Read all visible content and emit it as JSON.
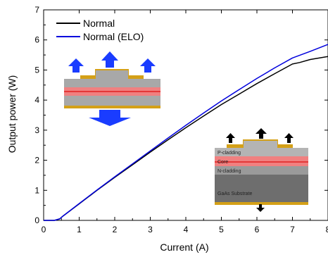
{
  "chart_data": {
    "type": "line",
    "xlabel": "Current  (A)",
    "ylabel": "Output power (W)",
    "xlim": [
      0,
      8
    ],
    "ylim": [
      0,
      7
    ],
    "x_ticks": [
      "0",
      "1",
      "2",
      "3",
      "4",
      "5",
      "6",
      "7",
      "8"
    ],
    "y_ticks": [
      "0",
      "1",
      "2",
      "3",
      "4",
      "5",
      "6",
      "7"
    ],
    "grid": false,
    "legend_position": "top-left",
    "series": [
      {
        "name": "Normal",
        "color": "#000000",
        "x": [
          0,
          0.3,
          0.45,
          0.55,
          1,
          1.5,
          2,
          2.5,
          3,
          3.5,
          4,
          4.5,
          5,
          5.5,
          6,
          6.5,
          7,
          7.2,
          7.5,
          8
        ],
        "y": [
          0,
          0,
          0.05,
          0.15,
          0.55,
          1.0,
          1.43,
          1.85,
          2.27,
          2.68,
          3.08,
          3.47,
          3.85,
          4.2,
          4.55,
          4.88,
          5.2,
          5.25,
          5.35,
          5.45
        ]
      },
      {
        "name": "Normal (ELO)",
        "color": "#0000dd",
        "x": [
          0,
          0.3,
          0.45,
          0.55,
          1,
          1.5,
          2,
          2.5,
          3,
          3.5,
          4,
          4.5,
          5,
          5.5,
          6,
          6.5,
          7,
          7.5,
          8
        ],
        "y": [
          0,
          0,
          0.05,
          0.15,
          0.56,
          1.01,
          1.45,
          1.88,
          2.31,
          2.74,
          3.16,
          3.57,
          3.97,
          4.35,
          4.72,
          5.07,
          5.4,
          5.62,
          5.85
        ]
      }
    ],
    "inset_right": {
      "layers": [
        "P-cladding",
        "Core",
        "N-cladding",
        "GaAs Substrate"
      ]
    }
  }
}
